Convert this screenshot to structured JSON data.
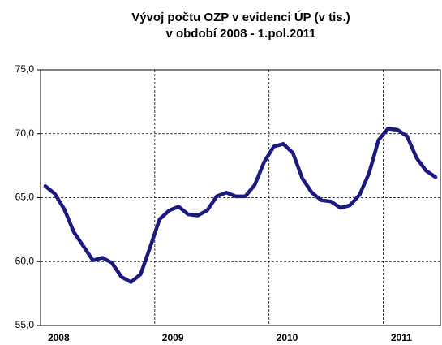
{
  "chart_data": {
    "type": "line",
    "title": "Vývoj počtu OZP v evidenci ÚP (v tis.)",
    "subtitle": "v období 2008 - 1.pol.2011",
    "categories": [
      "2008",
      null,
      null,
      null,
      null,
      null,
      null,
      null,
      null,
      null,
      null,
      null,
      "2009",
      null,
      null,
      null,
      null,
      null,
      null,
      null,
      null,
      null,
      null,
      null,
      "2010",
      null,
      null,
      null,
      null,
      null,
      null,
      null,
      null,
      null,
      null,
      null,
      "2011",
      null,
      null,
      null,
      null,
      null
    ],
    "series": [
      {
        "color": "#1a1a80",
        "values": [
          65.9,
          65.3,
          64.1,
          62.3,
          61.2,
          60.1,
          60.3,
          59.9,
          58.8,
          58.4,
          59.0,
          61.1,
          63.3,
          64.0,
          64.3,
          63.7,
          63.6,
          64.0,
          65.1,
          65.4,
          65.1,
          65.1,
          66.0,
          67.8,
          69.0,
          69.2,
          68.5,
          66.5,
          65.4,
          64.8,
          64.7,
          64.2,
          64.4,
          65.2,
          66.9,
          69.5,
          70.4,
          70.3,
          69.8,
          68.1,
          67.1,
          66.6
        ]
      }
    ],
    "ylim": [
      55,
      75
    ],
    "yticks": [
      {
        "value": 55,
        "label": "55,0"
      },
      {
        "value": 60,
        "label": "60,0"
      },
      {
        "value": 65,
        "label": "65,0"
      },
      {
        "value": 70,
        "label": "70,0"
      },
      {
        "value": 75,
        "label": "75,0"
      }
    ],
    "grid": true
  }
}
